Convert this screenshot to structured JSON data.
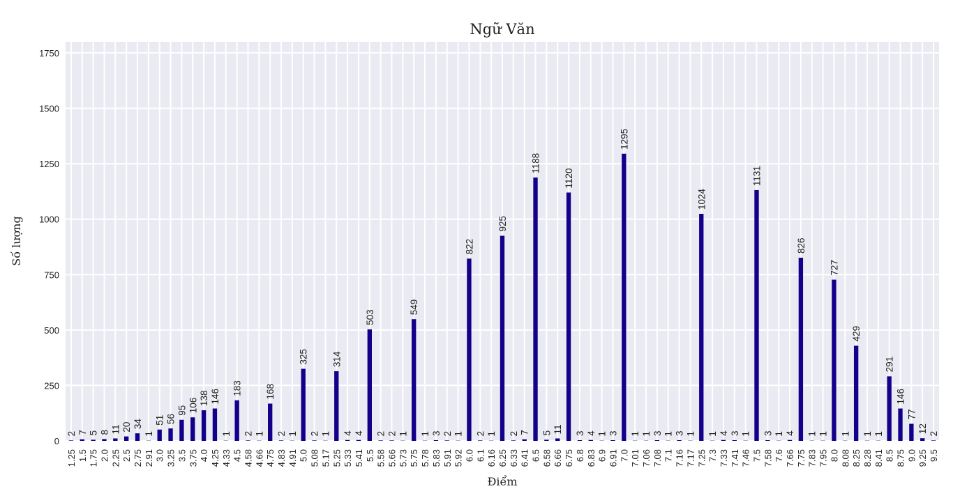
{
  "chart_data": {
    "type": "bar",
    "title": "Ngữ Văn",
    "xlabel": "Điểm",
    "ylabel": "Số lượng",
    "ylim": [
      0,
      1800
    ],
    "yticks": [
      0,
      250,
      500,
      750,
      1000,
      1250,
      1500,
      1750
    ],
    "grid": true,
    "bar_color": "#12008a",
    "background": "#eaeaf2",
    "categories": [
      "1.25",
      "1.5",
      "1.75",
      "2.0",
      "2.25",
      "2.5",
      "2.75",
      "2.91",
      "3.0",
      "3.25",
      "3.5",
      "3.75",
      "4.0",
      "4.25",
      "4.33",
      "4.5",
      "4.58",
      "4.66",
      "4.75",
      "4.83",
      "4.91",
      "5.0",
      "5.08",
      "5.17",
      "5.25",
      "5.33",
      "5.41",
      "5.5",
      "5.58",
      "5.66",
      "5.73",
      "5.75",
      "5.78",
      "5.83",
      "5.91",
      "5.92",
      "6.0",
      "6.1",
      "6.16",
      "6.25",
      "6.33",
      "6.41",
      "6.5",
      "6.58",
      "6.66",
      "6.75",
      "6.8",
      "6.83",
      "6.9",
      "6.91",
      "7.0",
      "7.01",
      "7.06",
      "7.08",
      "7.1",
      "7.16",
      "7.17",
      "7.25",
      "7.3",
      "7.33",
      "7.41",
      "7.46",
      "7.5",
      "7.58",
      "7.6",
      "7.66",
      "7.75",
      "7.83",
      "7.95",
      "8.0",
      "8.08",
      "8.25",
      "8.28",
      "8.41",
      "8.5",
      "8.75",
      "9.0",
      "9.25",
      "9.5"
    ],
    "values": [
      2,
      7,
      5,
      8,
      11,
      20,
      34,
      1,
      51,
      56,
      95,
      106,
      138,
      146,
      1,
      183,
      2,
      1,
      168,
      2,
      1,
      325,
      2,
      1,
      314,
      4,
      4,
      503,
      2,
      2,
      1,
      549,
      1,
      3,
      2,
      1,
      822,
      2,
      1,
      925,
      2,
      7,
      1188,
      5,
      11,
      1120,
      3,
      4,
      1,
      3,
      1295,
      1,
      1,
      3,
      1,
      3,
      1,
      1024,
      1,
      4,
      3,
      1,
      1131,
      3,
      1,
      4,
      826,
      1,
      1,
      727,
      1,
      429,
      1,
      1,
      291,
      146,
      77,
      12,
      2
    ]
  }
}
